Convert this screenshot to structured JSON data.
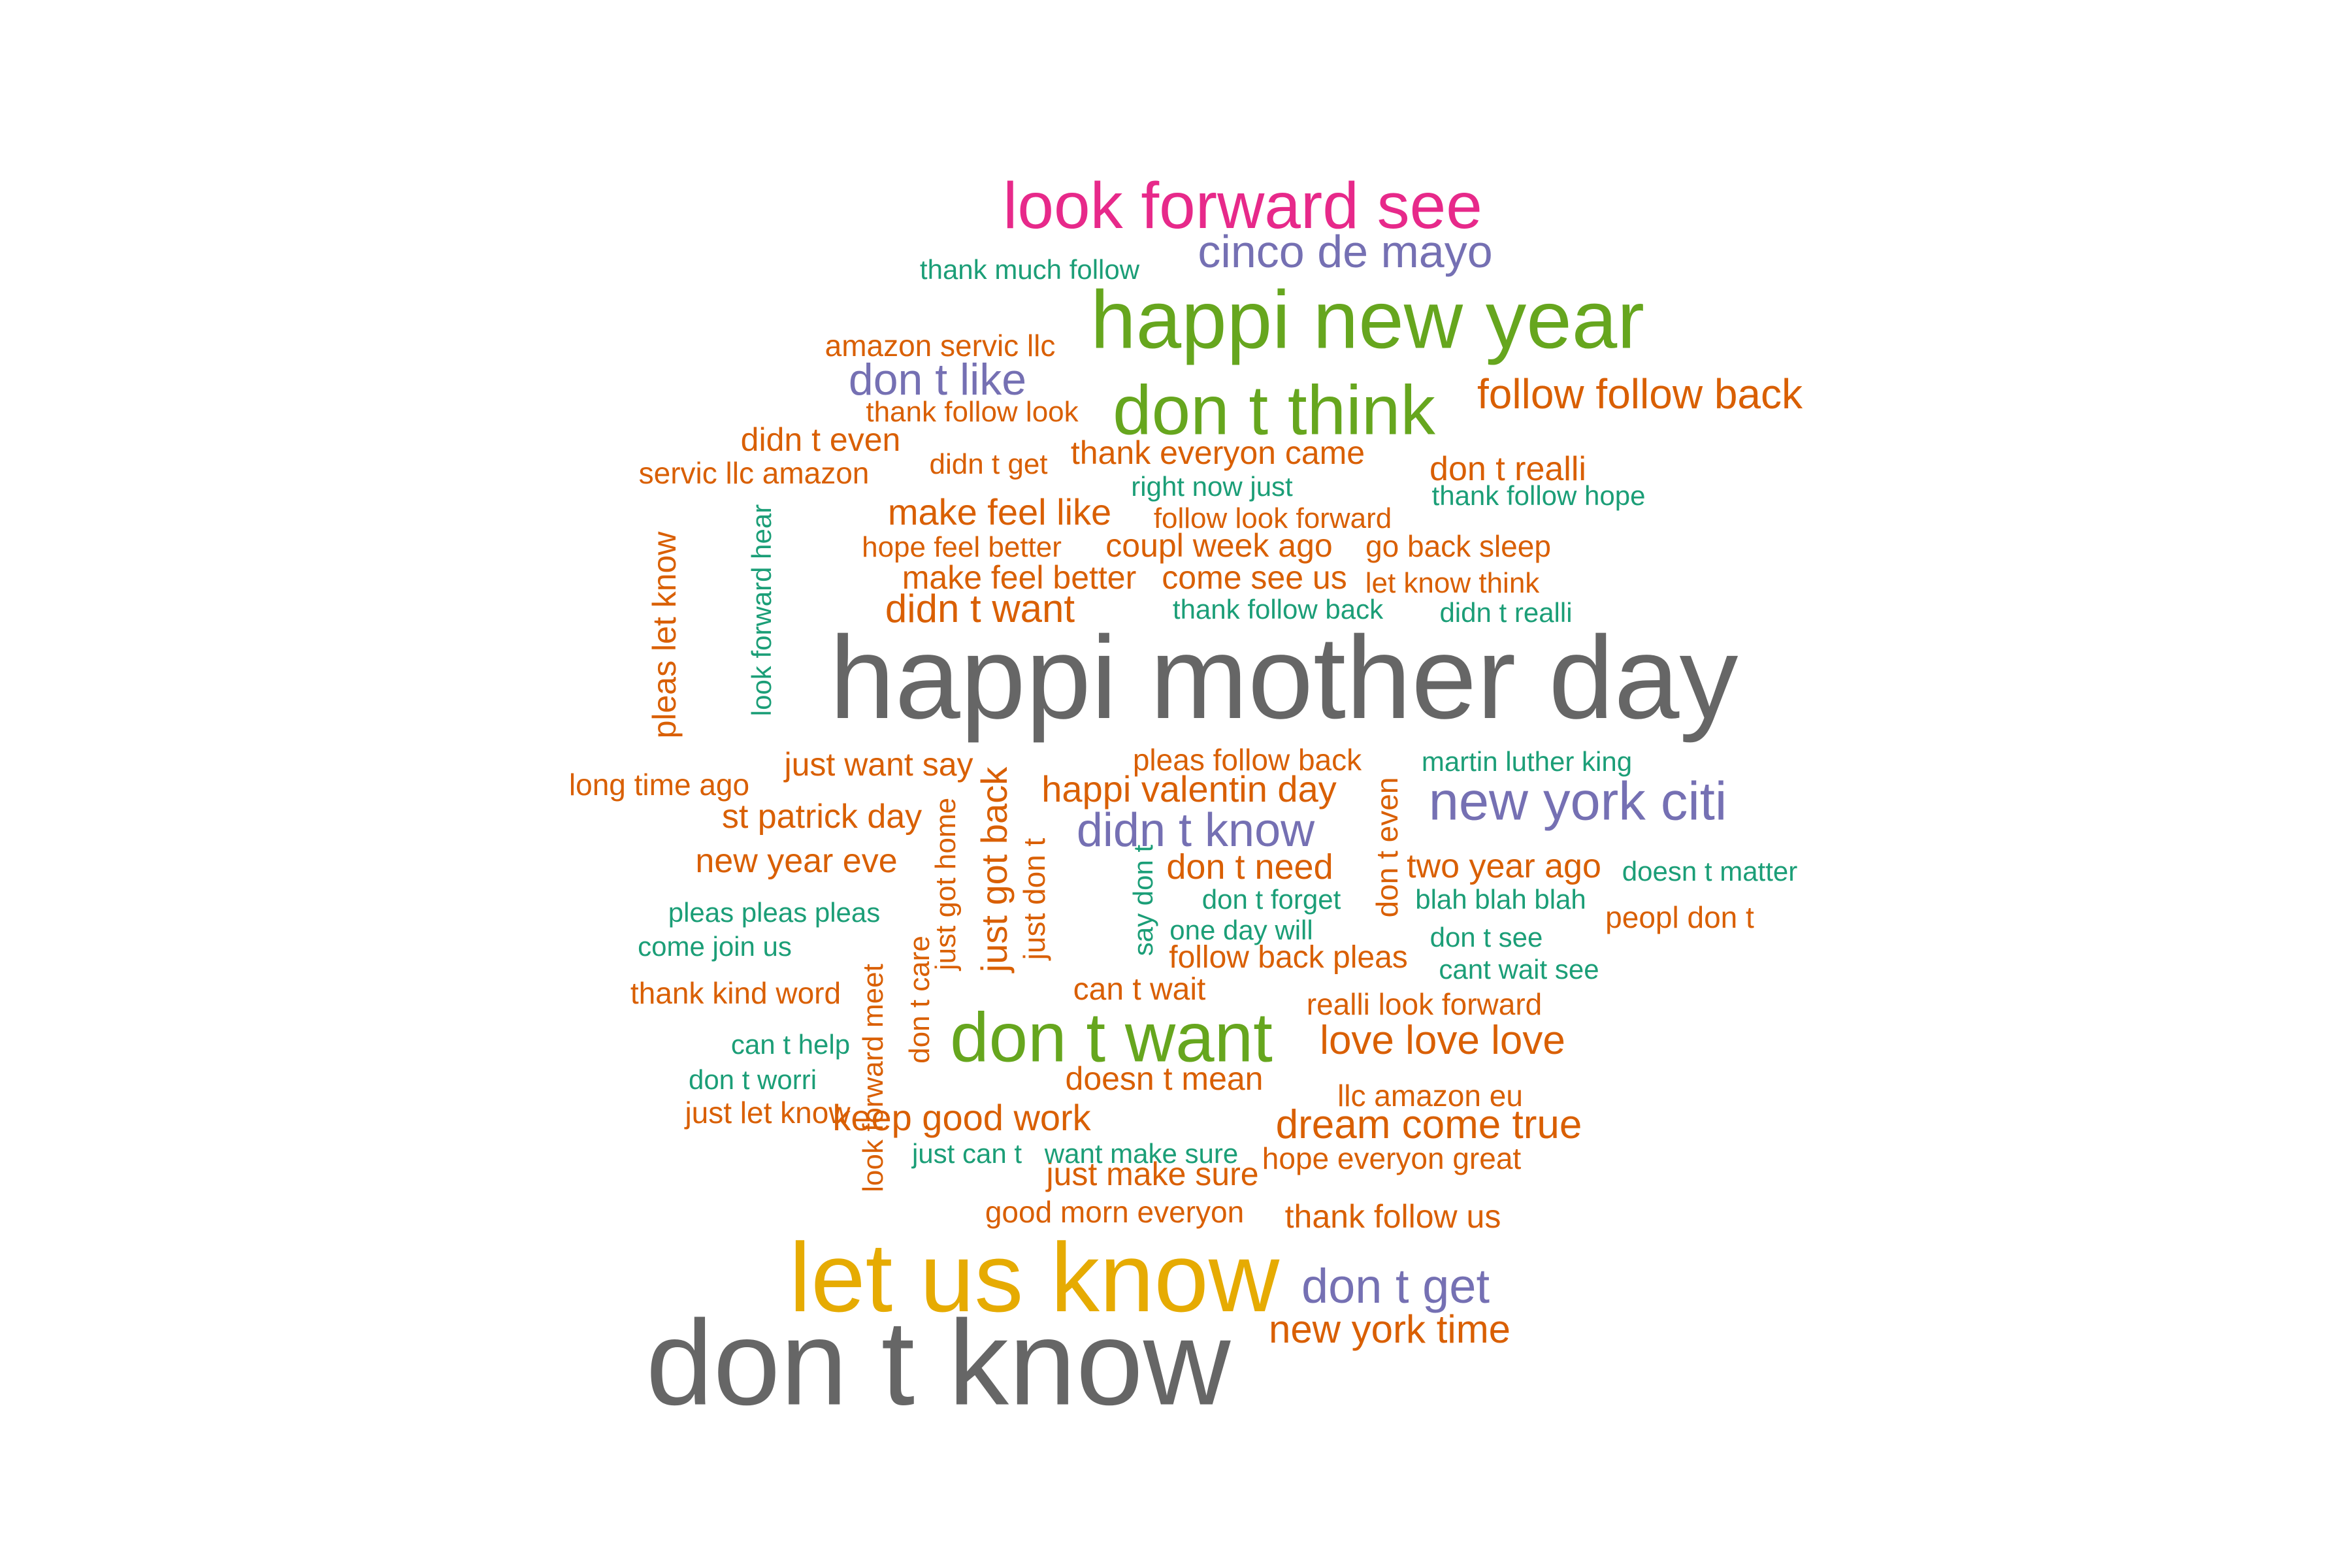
{
  "palette": {
    "gray": "#666666",
    "orange": "#D95F02",
    "teal": "#1B9E77",
    "purple": "#7570B3",
    "pink": "#E7298A",
    "green": "#66A61E",
    "gold": "#E6AB02"
  },
  "words": [
    {
      "text": "happi mother day",
      "color": "gray"
    },
    {
      "text": "don t know",
      "color": "gray"
    },
    {
      "text": "let us know",
      "color": "gold"
    },
    {
      "text": "happi new year",
      "color": "green"
    },
    {
      "text": "don t want",
      "color": "green"
    },
    {
      "text": "don t think",
      "color": "green"
    },
    {
      "text": "look forward see",
      "color": "pink"
    },
    {
      "text": "new york citi",
      "color": "purple"
    },
    {
      "text": "don t get",
      "color": "purple"
    },
    {
      "text": "didn t know",
      "color": "purple"
    },
    {
      "text": "cinco de mayo",
      "color": "purple"
    },
    {
      "text": "don t like",
      "color": "purple"
    },
    {
      "text": "follow follow back",
      "color": "orange"
    },
    {
      "text": "dream come true",
      "color": "orange"
    },
    {
      "text": "love love love",
      "color": "orange"
    },
    {
      "text": "new york time",
      "color": "orange"
    },
    {
      "text": "didn t want",
      "color": "orange"
    },
    {
      "text": "make feel like",
      "color": "orange"
    },
    {
      "text": "happi valentin day",
      "color": "orange"
    },
    {
      "text": "keep good work",
      "color": "orange"
    },
    {
      "text": "just got back",
      "color": "orange"
    },
    {
      "text": "don t need",
      "color": "orange"
    },
    {
      "text": "two year ago",
      "color": "orange"
    },
    {
      "text": "don t realli",
      "color": "orange"
    },
    {
      "text": "thank everyon came",
      "color": "orange"
    },
    {
      "text": "new year eve",
      "color": "orange"
    },
    {
      "text": "st patrick day",
      "color": "orange"
    },
    {
      "text": "just want say",
      "color": "orange"
    },
    {
      "text": "make feel better",
      "color": "orange"
    },
    {
      "text": "coupl week ago",
      "color": "orange"
    },
    {
      "text": "come see us",
      "color": "orange"
    },
    {
      "text": "thank follow us",
      "color": "orange"
    },
    {
      "text": "doesn t mean",
      "color": "orange"
    },
    {
      "text": "just make sure",
      "color": "orange"
    },
    {
      "text": "didn t even",
      "color": "orange"
    },
    {
      "text": "pleas let know",
      "color": "orange"
    },
    {
      "text": "can t wait",
      "color": "orange"
    },
    {
      "text": "follow back pleas",
      "color": "orange"
    },
    {
      "text": "realli look forward",
      "color": "orange"
    },
    {
      "text": "just don t",
      "color": "orange"
    },
    {
      "text": "don t even",
      "color": "orange"
    },
    {
      "text": "amazon servic llc",
      "color": "orange"
    },
    {
      "text": "servic llc amazon",
      "color": "orange"
    },
    {
      "text": "go back sleep",
      "color": "orange"
    },
    {
      "text": "pleas follow back",
      "color": "orange"
    },
    {
      "text": "peopl don t",
      "color": "orange"
    },
    {
      "text": "good morn everyon",
      "color": "orange"
    },
    {
      "text": "thank kind word",
      "color": "orange"
    },
    {
      "text": "hope everyon great",
      "color": "orange"
    },
    {
      "text": "llc amazon eu",
      "color": "orange"
    },
    {
      "text": "long time ago",
      "color": "orange"
    },
    {
      "text": "just let know",
      "color": "orange"
    },
    {
      "text": "hope feel better",
      "color": "orange"
    },
    {
      "text": "follow look forward",
      "color": "orange"
    },
    {
      "text": "thank follow look",
      "color": "orange"
    },
    {
      "text": "didn t get",
      "color": "orange"
    },
    {
      "text": "let know think",
      "color": "orange"
    },
    {
      "text": "just got home",
      "color": "orange"
    },
    {
      "text": "look forward meet",
      "color": "orange"
    },
    {
      "text": "don t care",
      "color": "orange"
    },
    {
      "text": "thank much follow",
      "color": "teal"
    },
    {
      "text": "right now just",
      "color": "teal"
    },
    {
      "text": "thank follow hope",
      "color": "teal"
    },
    {
      "text": "thank follow back",
      "color": "teal"
    },
    {
      "text": "didn t realli",
      "color": "teal"
    },
    {
      "text": "look forward hear",
      "color": "teal"
    },
    {
      "text": "martin luther king",
      "color": "teal"
    },
    {
      "text": "doesn t matter",
      "color": "teal"
    },
    {
      "text": "don t forget",
      "color": "teal"
    },
    {
      "text": "blah blah blah",
      "color": "teal"
    },
    {
      "text": "pleas pleas pleas",
      "color": "teal"
    },
    {
      "text": "one day will",
      "color": "teal"
    },
    {
      "text": "don t see",
      "color": "teal"
    },
    {
      "text": "come join us",
      "color": "teal"
    },
    {
      "text": "cant wait see",
      "color": "teal"
    },
    {
      "text": "say don t",
      "color": "teal"
    },
    {
      "text": "can t help",
      "color": "teal"
    },
    {
      "text": "don t worri",
      "color": "teal"
    },
    {
      "text": "just can t",
      "color": "teal"
    },
    {
      "text": "want make sure",
      "color": "teal"
    }
  ]
}
